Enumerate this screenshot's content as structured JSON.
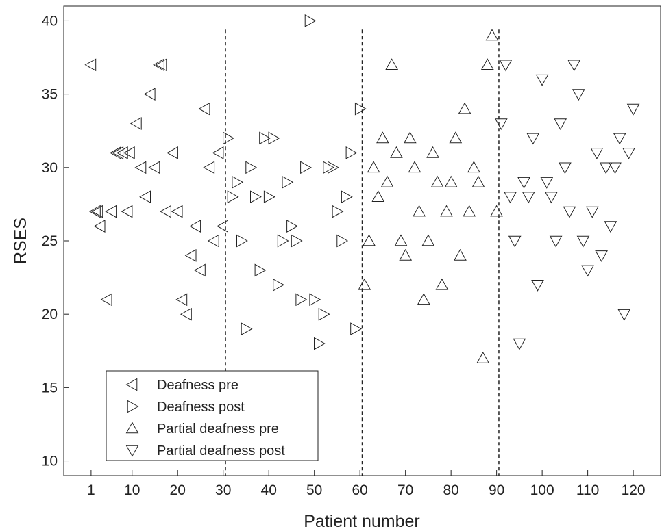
{
  "chart_data": {
    "type": "scatter",
    "title": "",
    "xlabel": "Patient number",
    "ylabel": "RSES",
    "xlim": [
      -5,
      126
    ],
    "ylim": [
      9,
      41
    ],
    "xticks": [
      1,
      10,
      20,
      30,
      40,
      50,
      60,
      70,
      80,
      90,
      100,
      110,
      120
    ],
    "yticks": [
      10,
      15,
      20,
      25,
      30,
      35,
      40
    ],
    "grid": false,
    "legend_position": "bottom-left",
    "vlines": [
      30.5,
      60.5,
      90.5
    ],
    "series": [
      {
        "name": "Deafness pre",
        "marker": "triangle-left",
        "points": [
          [
            1,
            37
          ],
          [
            2,
            27
          ],
          [
            2.5,
            27
          ],
          [
            3,
            26
          ],
          [
            4.5,
            21
          ],
          [
            5.5,
            27
          ],
          [
            6.5,
            31
          ],
          [
            7,
            31
          ],
          [
            8,
            31
          ],
          [
            9,
            27
          ],
          [
            9.5,
            31
          ],
          [
            11,
            33
          ],
          [
            12,
            30
          ],
          [
            13,
            28
          ],
          [
            14,
            35
          ],
          [
            15,
            30
          ],
          [
            16,
            37
          ],
          [
            16.5,
            37
          ],
          [
            17.5,
            27
          ],
          [
            19,
            31
          ],
          [
            20,
            27
          ],
          [
            21,
            21
          ],
          [
            22,
            20
          ],
          [
            23,
            24
          ],
          [
            24,
            26
          ],
          [
            25,
            23
          ],
          [
            26,
            34
          ],
          [
            27,
            30
          ],
          [
            28,
            25
          ],
          [
            29,
            31
          ],
          [
            30,
            26
          ]
        ]
      },
      {
        "name": "Deafness post",
        "marker": "triangle-right",
        "points": [
          [
            31,
            32
          ],
          [
            32,
            28
          ],
          [
            33,
            29
          ],
          [
            34,
            25
          ],
          [
            35,
            19
          ],
          [
            36,
            30
          ],
          [
            37,
            28
          ],
          [
            38,
            23
          ],
          [
            39,
            32
          ],
          [
            40,
            28
          ],
          [
            41,
            32
          ],
          [
            42,
            22
          ],
          [
            43,
            25
          ],
          [
            44,
            29
          ],
          [
            45,
            26
          ],
          [
            46,
            25
          ],
          [
            47,
            21
          ],
          [
            48,
            30
          ],
          [
            49,
            40
          ],
          [
            50,
            21
          ],
          [
            51,
            18
          ],
          [
            52,
            20
          ],
          [
            53,
            30
          ],
          [
            54,
            30
          ],
          [
            55,
            27
          ],
          [
            56,
            25
          ],
          [
            57,
            28
          ],
          [
            58,
            31
          ],
          [
            59,
            19
          ],
          [
            60,
            34
          ]
        ]
      },
      {
        "name": "Partial deafness pre",
        "marker": "triangle-up",
        "points": [
          [
            61,
            22
          ],
          [
            62,
            25
          ],
          [
            63,
            30
          ],
          [
            64,
            28
          ],
          [
            65,
            32
          ],
          [
            66,
            29
          ],
          [
            67,
            37
          ],
          [
            68,
            31
          ],
          [
            69,
            25
          ],
          [
            70,
            24
          ],
          [
            71,
            32
          ],
          [
            72,
            30
          ],
          [
            73,
            27
          ],
          [
            74,
            21
          ],
          [
            75,
            25
          ],
          [
            76,
            31
          ],
          [
            77,
            29
          ],
          [
            78,
            22
          ],
          [
            79,
            27
          ],
          [
            80,
            29
          ],
          [
            81,
            32
          ],
          [
            82,
            24
          ],
          [
            83,
            34
          ],
          [
            84,
            27
          ],
          [
            85,
            30
          ],
          [
            86,
            29
          ],
          [
            87,
            17
          ],
          [
            88,
            37
          ],
          [
            89,
            39
          ],
          [
            90,
            27
          ]
        ]
      },
      {
        "name": "Partial deafness post",
        "marker": "triangle-down",
        "points": [
          [
            91,
            33
          ],
          [
            92,
            37
          ],
          [
            93,
            28
          ],
          [
            94,
            25
          ],
          [
            95,
            18
          ],
          [
            96,
            29
          ],
          [
            97,
            28
          ],
          [
            98,
            32
          ],
          [
            99,
            22
          ],
          [
            100,
            36
          ],
          [
            101,
            29
          ],
          [
            102,
            28
          ],
          [
            103,
            25
          ],
          [
            104,
            33
          ],
          [
            105,
            30
          ],
          [
            106,
            27
          ],
          [
            107,
            37
          ],
          [
            108,
            35
          ],
          [
            109,
            25
          ],
          [
            110,
            23
          ],
          [
            111,
            27
          ],
          [
            112,
            31
          ],
          [
            113,
            24
          ],
          [
            114,
            30
          ],
          [
            115,
            26
          ],
          [
            116,
            30
          ],
          [
            117,
            32
          ],
          [
            118,
            20
          ],
          [
            119,
            31
          ],
          [
            120,
            34
          ]
        ]
      }
    ]
  }
}
